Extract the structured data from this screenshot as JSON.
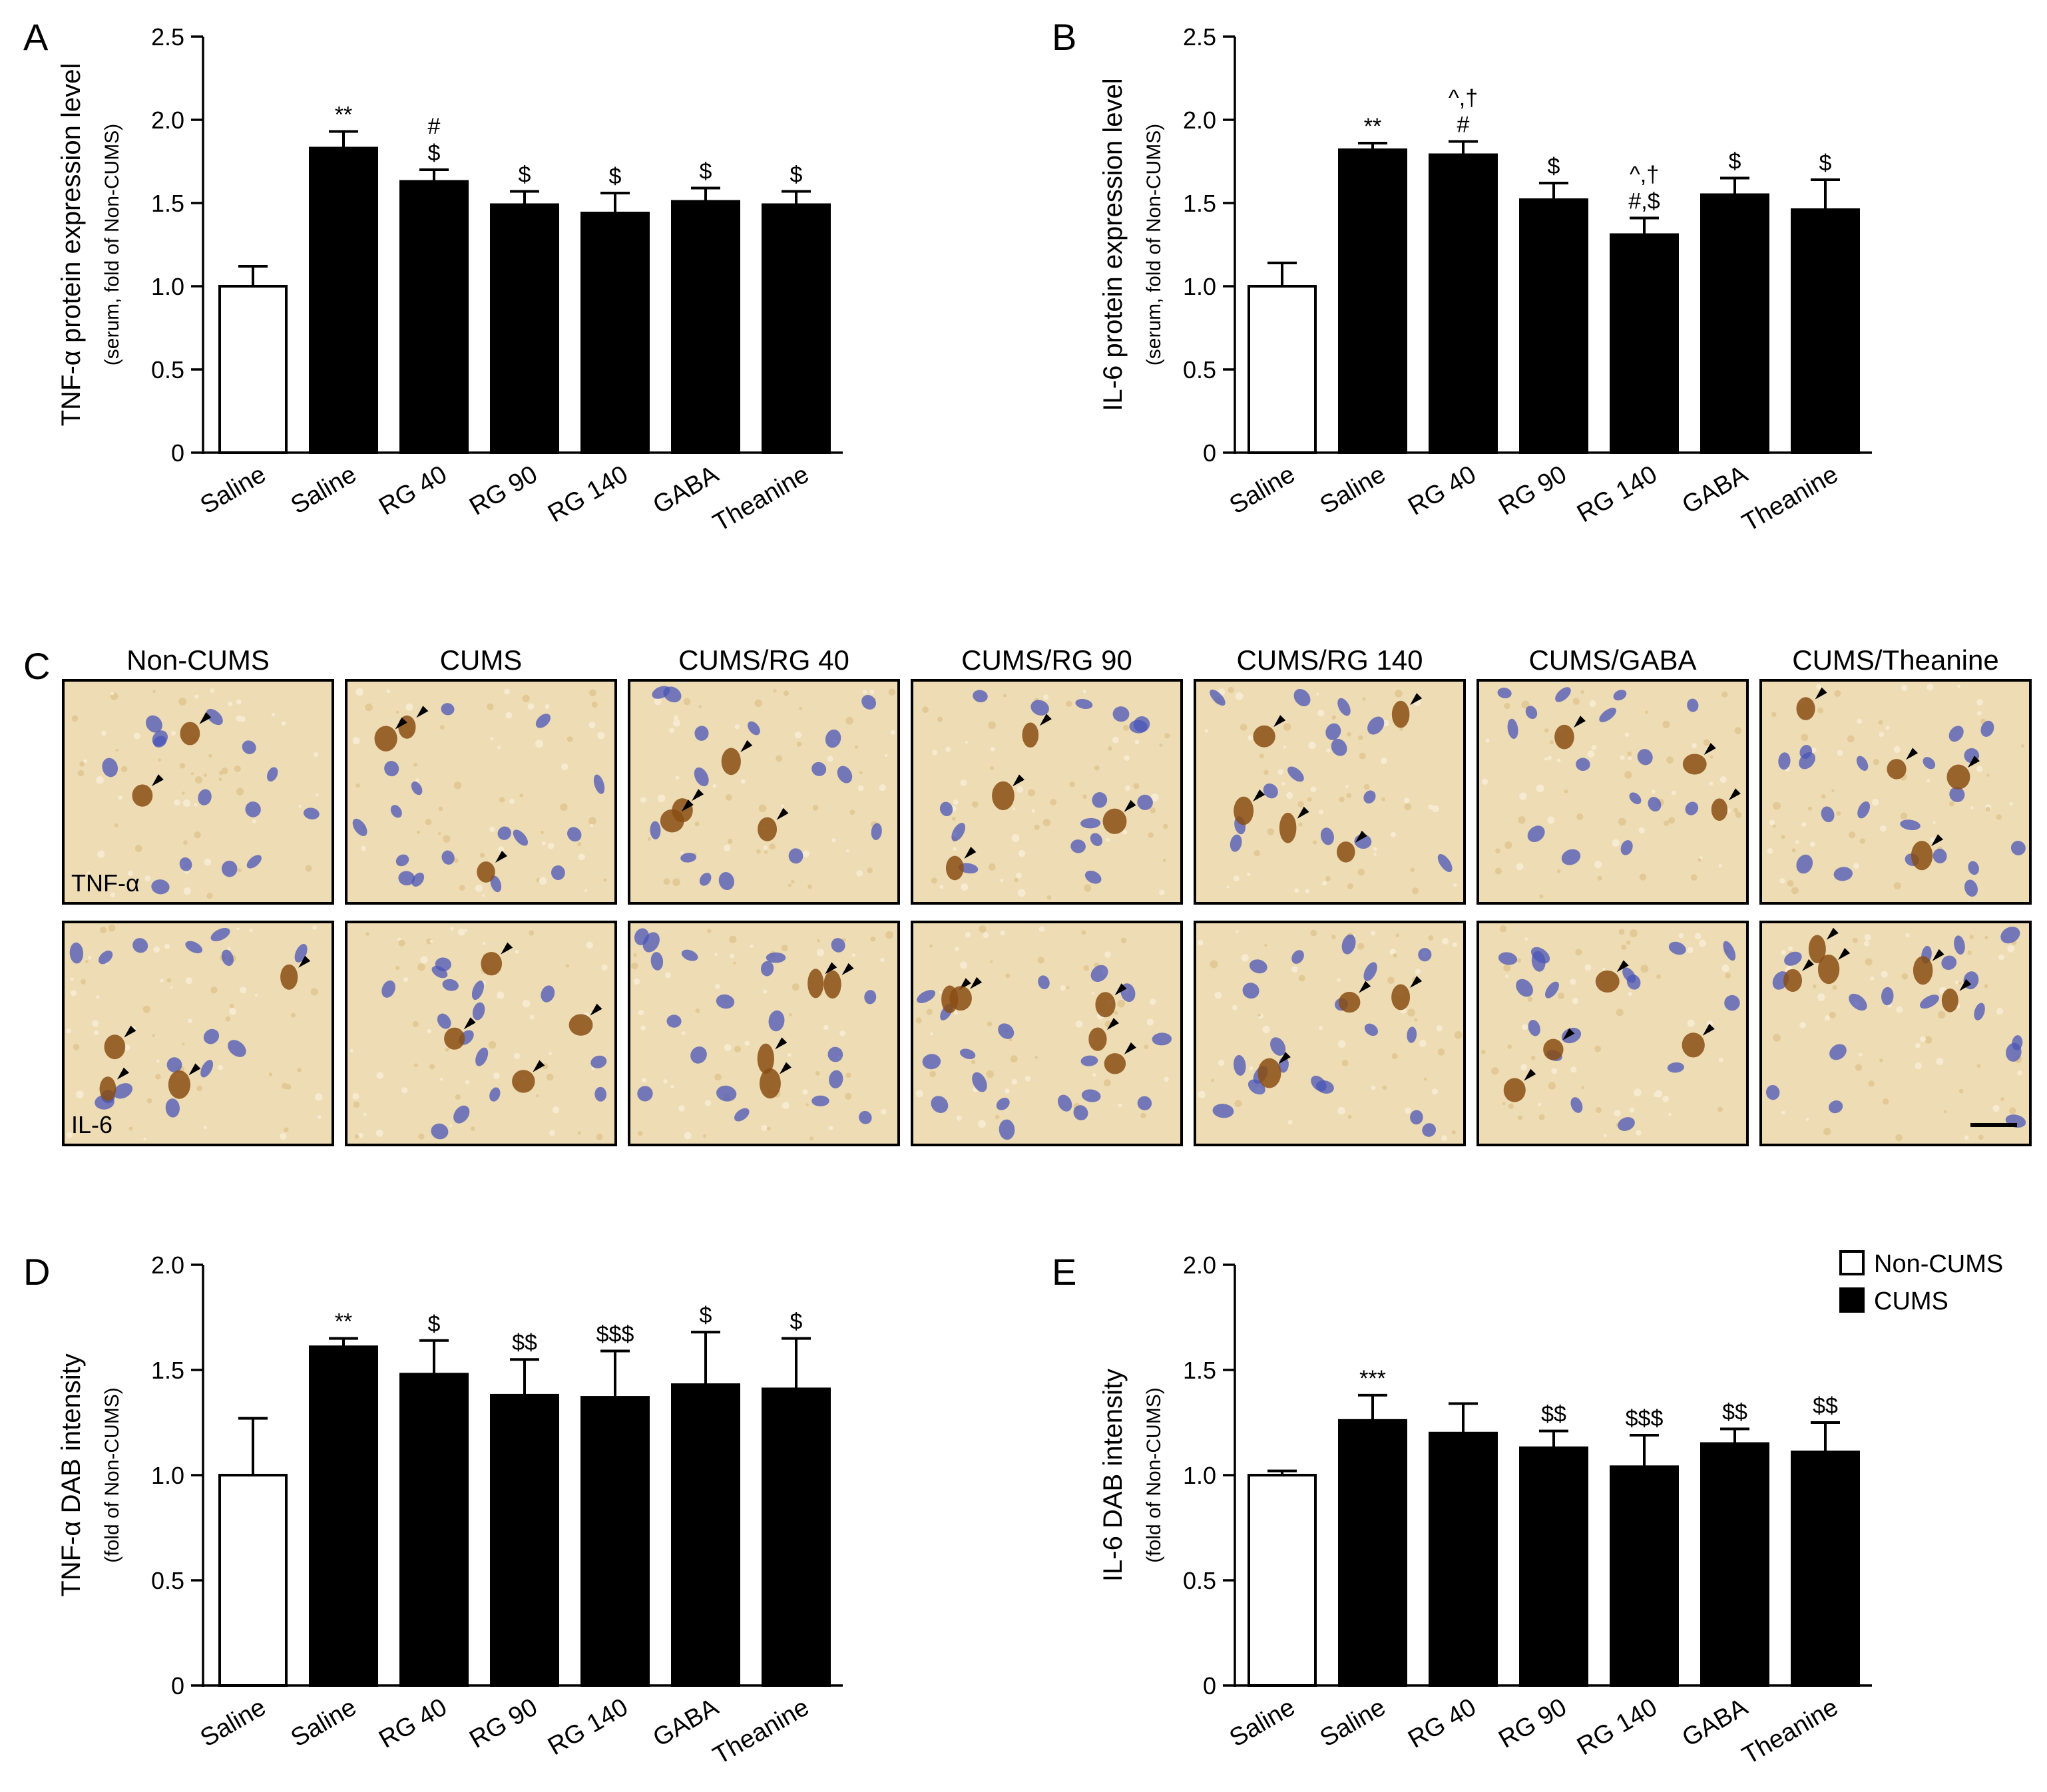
{
  "chart_data": [
    {
      "panel": "A",
      "type": "bar",
      "ylabel": "TNF-α protein expression level",
      "ylabel_sub": "(serum, fold of Non-CUMS)",
      "ylim": [
        0,
        2.5
      ],
      "yticks": [
        "0",
        "0.5",
        "1.0",
        "1.5",
        "2.0",
        "2.5"
      ],
      "ytick_values": [
        0,
        0.5,
        1.0,
        1.5,
        2.0,
        2.5
      ],
      "categories": [
        "Saline",
        "Saline",
        "RG 40",
        "RG 90",
        "RG 140",
        "GABA",
        "Theanine"
      ],
      "groups": [
        "Non-CUMS",
        "CUMS",
        "CUMS",
        "CUMS",
        "CUMS",
        "CUMS",
        "CUMS"
      ],
      "values": [
        1.0,
        1.83,
        1.63,
        1.49,
        1.44,
        1.51,
        1.49
      ],
      "errors": [
        0.12,
        0.1,
        0.07,
        0.08,
        0.12,
        0.08,
        0.08
      ],
      "annotations": [
        [],
        [
          "**"
        ],
        [
          "#",
          "$"
        ],
        [
          "$"
        ],
        [
          "$"
        ],
        [
          "$"
        ],
        [
          "$"
        ]
      ]
    },
    {
      "panel": "B",
      "type": "bar",
      "ylabel": "IL-6 protein expression level",
      "ylabel_sub": "(serum, fold of Non-CUMS)",
      "ylim": [
        0,
        2.5
      ],
      "yticks": [
        "0",
        "0.5",
        "1.0",
        "1.5",
        "2.0",
        "2.5"
      ],
      "ytick_values": [
        0,
        0.5,
        1.0,
        1.5,
        2.0,
        2.5
      ],
      "categories": [
        "Saline",
        "Saline",
        "RG 40",
        "RG 90",
        "RG 140",
        "GABA",
        "Theanine"
      ],
      "groups": [
        "Non-CUMS",
        "CUMS",
        "CUMS",
        "CUMS",
        "CUMS",
        "CUMS",
        "CUMS"
      ],
      "values": [
        1.0,
        1.82,
        1.79,
        1.52,
        1.31,
        1.55,
        1.46
      ],
      "errors": [
        0.14,
        0.04,
        0.08,
        0.1,
        0.1,
        0.1,
        0.18
      ],
      "annotations": [
        [],
        [
          "**"
        ],
        [
          "^,†",
          "#"
        ],
        [
          "$"
        ],
        [
          "^,†",
          "#,$"
        ],
        [
          "$"
        ],
        [
          "$"
        ]
      ]
    },
    {
      "panel": "D",
      "type": "bar",
      "ylabel": "TNF-α DAB intensity",
      "ylabel_sub": "(fold of Non-CUMS)",
      "ylim": [
        0,
        2.0
      ],
      "yticks": [
        "0",
        "0.5",
        "1.0",
        "1.5",
        "2.0"
      ],
      "ytick_values": [
        0,
        0.5,
        1.0,
        1.5,
        2.0
      ],
      "categories": [
        "Saline",
        "Saline",
        "RG 40",
        "RG 90",
        "RG 140",
        "GABA",
        "Theanine"
      ],
      "groups": [
        "Non-CUMS",
        "CUMS",
        "CUMS",
        "CUMS",
        "CUMS",
        "CUMS",
        "CUMS"
      ],
      "values": [
        1.0,
        1.61,
        1.48,
        1.38,
        1.37,
        1.43,
        1.41
      ],
      "errors": [
        0.27,
        0.04,
        0.16,
        0.17,
        0.22,
        0.25,
        0.24
      ],
      "annotations": [
        [],
        [
          "**"
        ],
        [
          "$"
        ],
        [
          "$$"
        ],
        [
          "$$$"
        ],
        [
          "$"
        ],
        [
          "$"
        ]
      ]
    },
    {
      "panel": "E",
      "type": "bar",
      "ylabel": "IL-6 DAB intensity",
      "ylabel_sub": "(fold of Non-CUMS)",
      "ylim": [
        0,
        2.0
      ],
      "yticks": [
        "0",
        "0.5",
        "1.0",
        "1.5",
        "2.0"
      ],
      "ytick_values": [
        0,
        0.5,
        1.0,
        1.5,
        2.0
      ],
      "categories": [
        "Saline",
        "Saline",
        "RG 40",
        "RG 90",
        "RG 140",
        "GABA",
        "Theanine"
      ],
      "groups": [
        "Non-CUMS",
        "CUMS",
        "CUMS",
        "CUMS",
        "CUMS",
        "CUMS",
        "CUMS"
      ],
      "values": [
        1.0,
        1.26,
        1.2,
        1.13,
        1.04,
        1.15,
        1.11
      ],
      "errors": [
        0.02,
        0.12,
        0.14,
        0.08,
        0.15,
        0.07,
        0.14
      ],
      "annotations": [
        [],
        [
          "***"
        ],
        [],
        [
          "$$"
        ],
        [
          "$$$"
        ],
        [
          "$$"
        ],
        [
          "$$"
        ]
      ]
    }
  ],
  "panel_c": {
    "letter": "C",
    "titles": [
      "Non-CUMS",
      "CUMS",
      "CUMS/RG 40",
      "CUMS/RG 90",
      "CUMS/RG 140",
      "CUMS/GABA",
      "CUMS/Theanine"
    ],
    "rows": [
      "TNF-α",
      "IL-6"
    ]
  },
  "legend": [
    {
      "label": "Non-CUMS",
      "fill": "#ffffff"
    },
    {
      "label": "CUMS",
      "fill": "#000000"
    }
  ],
  "colors": {
    "non_cums": "#ffffff",
    "cums": "#000000",
    "tissue": "#eedcb4",
    "nucleus": "#4a55b8",
    "dab": "#8a4d14"
  }
}
